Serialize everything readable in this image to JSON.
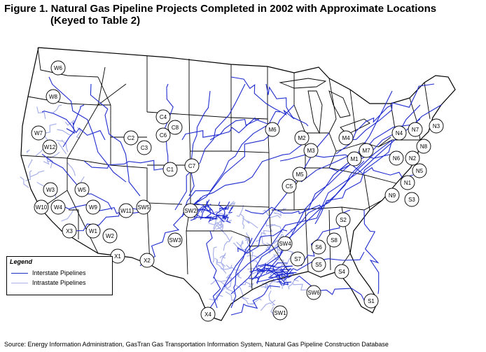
{
  "title": {
    "line1": "Figure 1. Natural Gas Pipeline Projects Completed in 2002 with Approximate Locations",
    "line2": "(Keyed to Table 2)"
  },
  "legend": {
    "title": "Legend",
    "items": [
      {
        "label": "Interstate Pipelines",
        "color": "#1f2ccf"
      },
      {
        "label": "Intrastate Pipelines",
        "color": "#a9b1ea"
      }
    ]
  },
  "source": "Source: Energy Information Administration, GasTran Gas Transportation Information System, Natural Gas Pipeline Construction Database",
  "colors": {
    "interstate": "#1f2ccf",
    "intrastate": "#a9b1ea",
    "border": "#000000"
  },
  "project_markers": [
    "W6",
    "W8",
    "W7",
    "W12",
    "W3",
    "W10",
    "W4",
    "W5",
    "W9",
    "W11",
    "X3",
    "W1",
    "W2",
    "X1",
    "X2",
    "C4",
    "C8",
    "C6",
    "C2",
    "C3",
    "C1",
    "C7",
    "SW5",
    "SW2",
    "SW3",
    "SW4",
    "SW1",
    "SW6",
    "X4",
    "M6",
    "M2",
    "M4",
    "M3",
    "M1",
    "M7",
    "M5",
    "C5",
    "N4",
    "N7",
    "N3",
    "N8",
    "N6",
    "N2",
    "N5",
    "N1",
    "N9",
    "S3",
    "S2",
    "S8",
    "S6",
    "S7",
    "S5",
    "S4",
    "S1"
  ]
}
